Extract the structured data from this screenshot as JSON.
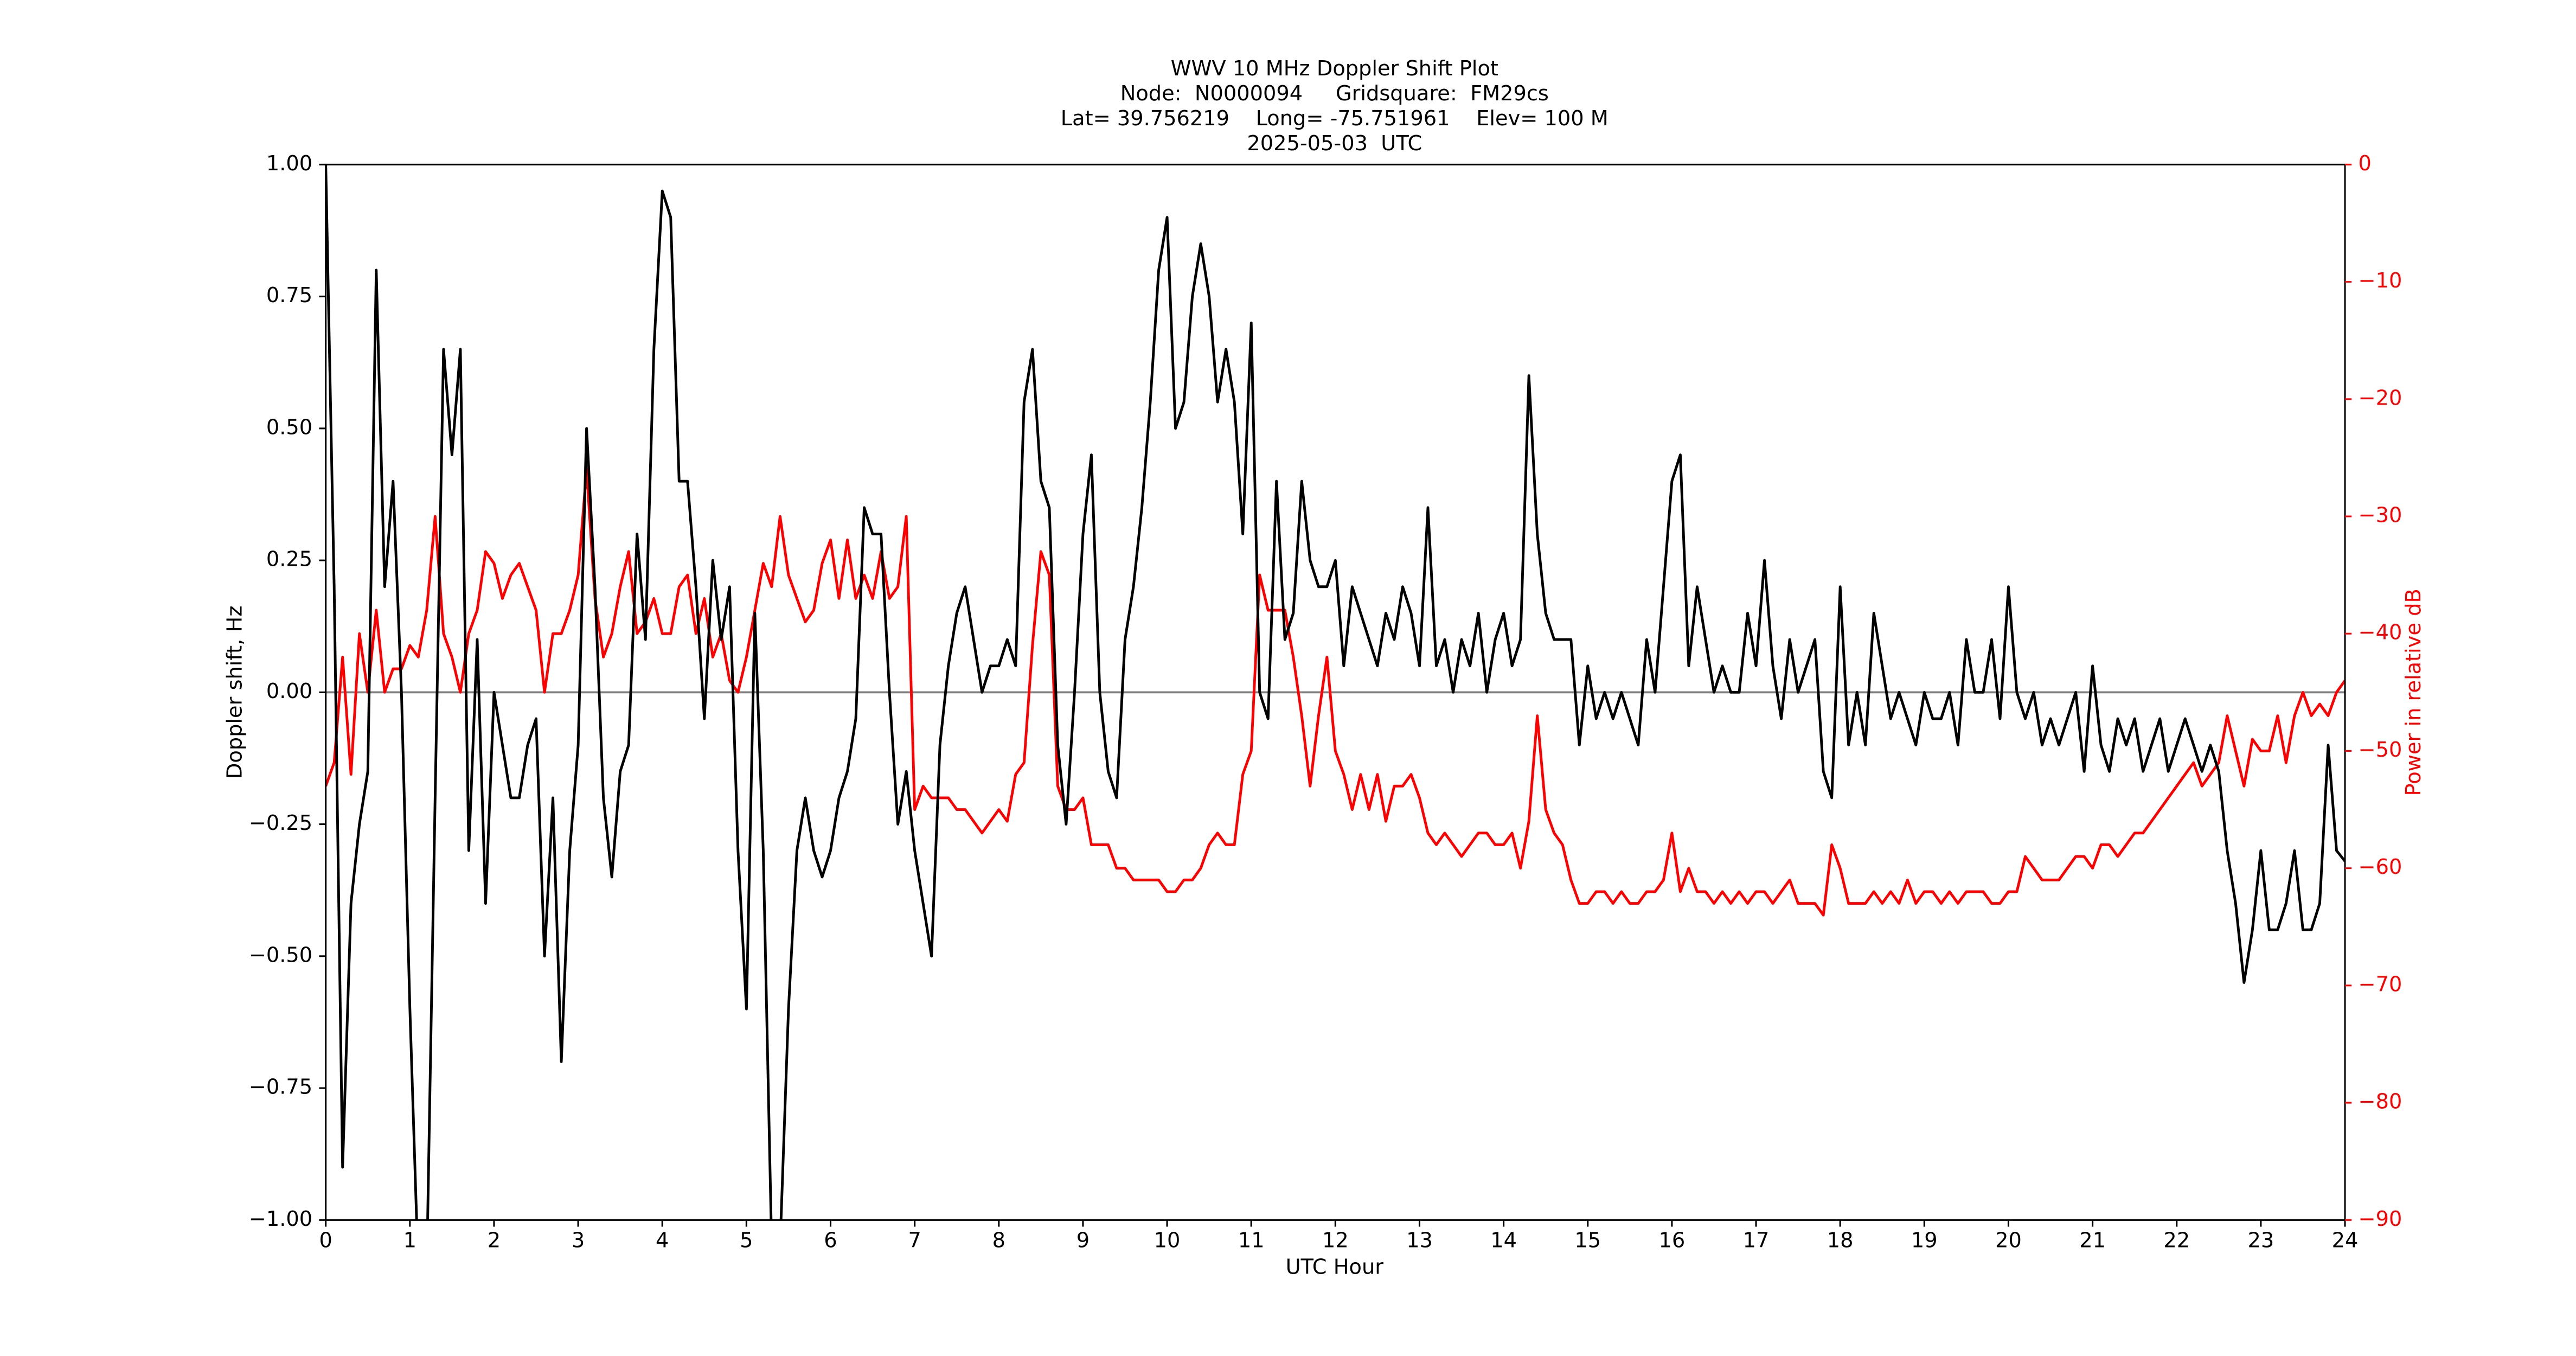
{
  "chart_data": {
    "type": "line",
    "title": [
      "WWV 10 MHz Doppler Shift Plot",
      "Node:  N0000094     Gridsquare:  FM29cs",
      "Lat= 39.756219    Long= -75.751961    Elev= 100 M",
      "2025-05-03  UTC"
    ],
    "xlabel": "UTC Hour",
    "ylabel": "Doppler shift, Hz",
    "y2label": "Power in relative dB",
    "xlim": [
      0,
      24
    ],
    "xticks": [
      0,
      1,
      2,
      3,
      4,
      5,
      6,
      7,
      8,
      9,
      10,
      11,
      12,
      13,
      14,
      15,
      16,
      17,
      18,
      19,
      20,
      21,
      22,
      23,
      24
    ],
    "ylim": [
      -1,
      1
    ],
    "yticks": [
      {
        "value": -1,
        "label": "−1.00"
      },
      {
        "value": -0.75,
        "label": "−0.75"
      },
      {
        "value": -0.5,
        "label": "−0.50"
      },
      {
        "value": -0.25,
        "label": "−0.25"
      },
      {
        "value": 0,
        "label": "0.00"
      },
      {
        "value": 0.25,
        "label": "0.25"
      },
      {
        "value": 0.5,
        "label": "0.50"
      },
      {
        "value": 0.75,
        "label": "0.75"
      },
      {
        "value": 1,
        "label": "1.00"
      }
    ],
    "y2lim": [
      -90,
      0
    ],
    "y2ticks": [
      {
        "value": -90,
        "label": "−90"
      },
      {
        "value": -80,
        "label": "−80"
      },
      {
        "value": -70,
        "label": "−70"
      },
      {
        "value": -60,
        "label": "−60"
      },
      {
        "value": -50,
        "label": "−50"
      },
      {
        "value": -40,
        "label": "−40"
      },
      {
        "value": -30,
        "label": "−30"
      },
      {
        "value": -20,
        "label": "−20"
      },
      {
        "value": -10,
        "label": "−10"
      },
      0
    ],
    "zero_line_color": "#808080",
    "x": [
      0,
      0.1,
      0.2,
      0.3,
      0.4,
      0.5,
      0.6,
      0.7,
      0.8,
      0.9,
      1,
      1.1,
      1.2,
      1.3,
      1.4,
      1.5,
      1.6,
      1.7,
      1.8,
      1.9,
      2,
      2.1,
      2.2,
      2.3,
      2.4,
      2.5,
      2.6,
      2.7,
      2.8,
      2.9,
      3,
      3.1,
      3.2,
      3.3,
      3.4,
      3.5,
      3.6,
      3.7,
      3.8,
      3.9,
      4,
      4.1,
      4.2,
      4.3,
      4.4,
      4.5,
      4.6,
      4.7,
      4.8,
      4.9,
      5,
      5.1,
      5.2,
      5.3,
      5.4,
      5.5,
      5.6,
      5.7,
      5.8,
      5.9,
      6,
      6.1,
      6.2,
      6.3,
      6.4,
      6.5,
      6.6,
      6.7,
      6.8,
      6.9,
      7,
      7.1,
      7.2,
      7.3,
      7.4,
      7.5,
      7.6,
      7.7,
      7.8,
      7.9,
      8,
      8.1,
      8.2,
      8.3,
      8.4,
      8.5,
      8.6,
      8.7,
      8.8,
      8.9,
      9,
      9.1,
      9.2,
      9.3,
      9.4,
      9.5,
      9.6,
      9.7,
      9.8,
      9.9,
      10,
      10.1,
      10.2,
      10.3,
      10.4,
      10.5,
      10.6,
      10.7,
      10.8,
      10.9,
      11,
      11.1,
      11.2,
      11.3,
      11.4,
      11.5,
      11.6,
      11.7,
      11.8,
      11.9,
      12,
      12.1,
      12.2,
      12.3,
      12.4,
      12.5,
      12.6,
      12.7,
      12.8,
      12.9,
      13,
      13.1,
      13.2,
      13.3,
      13.4,
      13.5,
      13.6,
      13.7,
      13.8,
      13.9,
      14,
      14.1,
      14.2,
      14.3,
      14.4,
      14.5,
      14.6,
      14.7,
      14.8,
      14.9,
      15,
      15.1,
      15.2,
      15.3,
      15.4,
      15.5,
      15.6,
      15.7,
      15.8,
      15.9,
      16,
      16.1,
      16.2,
      16.3,
      16.4,
      16.5,
      16.6,
      16.7,
      16.8,
      16.9,
      17,
      17.1,
      17.2,
      17.3,
      17.4,
      17.5,
      17.6,
      17.7,
      17.8,
      17.9,
      18,
      18.1,
      18.2,
      18.3,
      18.4,
      18.5,
      18.6,
      18.7,
      18.8,
      18.9,
      19,
      19.1,
      19.2,
      19.3,
      19.4,
      19.5,
      19.6,
      19.7,
      19.8,
      19.9,
      20,
      20.1,
      20.2,
      20.3,
      20.4,
      20.5,
      20.6,
      20.7,
      20.8,
      20.9,
      21,
      21.1,
      21.2,
      21.3,
      21.4,
      21.5,
      21.6,
      21.7,
      21.8,
      21.9,
      22,
      22.1,
      22.2,
      22.3,
      22.4,
      22.5,
      22.6,
      22.7,
      22.8,
      22.9,
      23,
      23.1,
      23.2,
      23.3,
      23.4,
      23.5,
      23.6,
      23.7,
      23.8,
      23.9,
      24
    ],
    "series": [
      {
        "name": "Doppler shift",
        "color": "#000000",
        "axis": "y",
        "values": [
          1.0,
          0.2,
          -0.9,
          -0.4,
          -0.25,
          -0.15,
          0.8,
          0.2,
          0.4,
          0.0,
          -0.6,
          -1.1,
          -1.1,
          -0.2,
          0.65,
          0.45,
          0.65,
          -0.3,
          0.1,
          -0.4,
          0.0,
          -0.1,
          -0.2,
          -0.2,
          -0.1,
          -0.05,
          -0.5,
          -0.2,
          -0.7,
          -0.3,
          -0.1,
          0.5,
          0.2,
          -0.2,
          -0.35,
          -0.15,
          -0.1,
          0.3,
          0.1,
          0.65,
          0.95,
          0.9,
          0.4,
          0.4,
          0.2,
          -0.05,
          0.25,
          0.1,
          0.2,
          -0.3,
          -0.6,
          0.15,
          -0.3,
          -1.05,
          -1.05,
          -0.6,
          -0.3,
          -0.2,
          -0.3,
          -0.35,
          -0.3,
          -0.2,
          -0.15,
          -0.05,
          0.35,
          0.3,
          0.3,
          0.0,
          -0.25,
          -0.15,
          -0.3,
          -0.4,
          -0.5,
          -0.1,
          0.05,
          0.15,
          0.2,
          0.1,
          0.0,
          0.05,
          0.05,
          0.1,
          0.05,
          0.55,
          0.65,
          0.4,
          0.35,
          -0.1,
          -0.25,
          0.0,
          0.3,
          0.45,
          0.0,
          -0.15,
          -0.2,
          0.1,
          0.2,
          0.35,
          0.55,
          0.8,
          0.9,
          0.5,
          0.55,
          0.75,
          0.85,
          0.75,
          0.55,
          0.65,
          0.55,
          0.3,
          0.7,
          0.0,
          -0.05,
          0.4,
          0.1,
          0.15,
          0.4,
          0.25,
          0.2,
          0.2,
          0.25,
          0.05,
          0.2,
          0.15,
          0.1,
          0.05,
          0.15,
          0.1,
          0.2,
          0.15,
          0.05,
          0.35,
          0.05,
          0.1,
          0.0,
          0.1,
          0.05,
          0.15,
          0.0,
          0.1,
          0.15,
          0.05,
          0.1,
          0.6,
          0.3,
          0.15,
          0.1,
          0.1,
          0.1,
          -0.1,
          0.05,
          -0.05,
          0.0,
          -0.05,
          0.0,
          -0.05,
          -0.1,
          0.1,
          0.0,
          0.2,
          0.4,
          0.45,
          0.05,
          0.2,
          0.1,
          0.0,
          0.05,
          0.0,
          0.0,
          0.15,
          0.05,
          0.25,
          0.05,
          -0.05,
          0.1,
          0.0,
          0.05,
          0.1,
          -0.15,
          -0.2,
          0.2,
          -0.1,
          0.0,
          -0.1,
          0.15,
          0.05,
          -0.05,
          0.0,
          -0.05,
          -0.1,
          0.0,
          -0.05,
          -0.05,
          0.0,
          -0.1,
          0.1,
          0.0,
          0.0,
          0.1,
          -0.05,
          0.2,
          0.0,
          -0.05,
          0.0,
          -0.1,
          -0.05,
          -0.1,
          -0.05,
          0.0,
          -0.15,
          0.05,
          -0.1,
          -0.15,
          -0.05,
          -0.1,
          -0.05,
          -0.15,
          -0.1,
          -0.05,
          -0.15,
          -0.1,
          -0.05,
          -0.1,
          -0.15,
          -0.1,
          -0.15,
          -0.3,
          -0.4,
          -0.55,
          -0.45,
          -0.3,
          -0.45,
          -0.45,
          -0.4,
          -0.3,
          -0.45,
          -0.45,
          -0.4,
          -0.1,
          -0.3,
          -0.32
        ]
      },
      {
        "name": "Power",
        "color": "#ff0000",
        "axis": "y2",
        "values": [
          -53,
          -51,
          -42,
          -52,
          -40,
          -45,
          -38,
          -45,
          -43,
          -43,
          -41,
          -42,
          -38,
          -30,
          -40,
          -42,
          -45,
          -40,
          -38,
          -33,
          -34,
          -37,
          -35,
          -34,
          -36,
          -38,
          -45,
          -40,
          -40,
          -38,
          -35,
          -26,
          -37,
          -42,
          -40,
          -36,
          -33,
          -40,
          -39,
          -37,
          -40,
          -40,
          -36,
          -35,
          -40,
          -37,
          -42,
          -40,
          -44,
          -45,
          -42,
          -38,
          -34,
          -36,
          -30,
          -35,
          -37,
          -39,
          -38,
          -34,
          -32,
          -37,
          -32,
          -37,
          -35,
          -37,
          -33,
          -37,
          -36,
          -30,
          -55,
          -53,
          -54,
          -54,
          -54,
          -55,
          -55,
          -56,
          -57,
          -56,
          -55,
          -56,
          -52,
          -51,
          -41,
          -33,
          -35,
          -53,
          -55,
          -55,
          -54,
          -58,
          -58,
          -58,
          -60,
          -60,
          -61,
          -61,
          -61,
          -61,
          -62,
          -62,
          -61,
          -61,
          -60,
          -58,
          -57,
          -58,
          -58,
          -52,
          -50,
          -35,
          -38,
          -38,
          -38,
          -42,
          -47,
          -53,
          -47,
          -42,
          -50,
          -52,
          -55,
          -52,
          -55,
          -52,
          -56,
          -53,
          -53,
          -52,
          -54,
          -57,
          -58,
          -57,
          -58,
          -59,
          -58,
          -57,
          -57,
          -58,
          -58,
          -57,
          -60,
          -56,
          -47,
          -55,
          -57,
          -58,
          -61,
          -63,
          -63,
          -62,
          -62,
          -63,
          -62,
          -63,
          -63,
          -62,
          -62,
          -61,
          -57,
          -62,
          -60,
          -62,
          -62,
          -63,
          -62,
          -63,
          -62,
          -63,
          -62,
          -62,
          -63,
          -62,
          -61,
          -63,
          -63,
          -63,
          -64,
          -58,
          -60,
          -63,
          -63,
          -63,
          -62,
          -63,
          -62,
          -63,
          -61,
          -63,
          -62,
          -62,
          -63,
          -62,
          -63,
          -62,
          -62,
          -62,
          -63,
          -63,
          -62,
          -62,
          -59,
          -60,
          -61,
          -61,
          -61,
          -60,
          -59,
          -59,
          -60,
          -58,
          -58,
          -59,
          -58,
          -57,
          -57,
          -56,
          -55,
          -54,
          -53,
          -52,
          -51,
          -53,
          -52,
          -51,
          -47,
          -50,
          -53,
          -49,
          -50,
          -50,
          -47,
          -51,
          -47,
          -45,
          -47,
          -46,
          -47,
          -45,
          -44
        ]
      }
    ]
  }
}
